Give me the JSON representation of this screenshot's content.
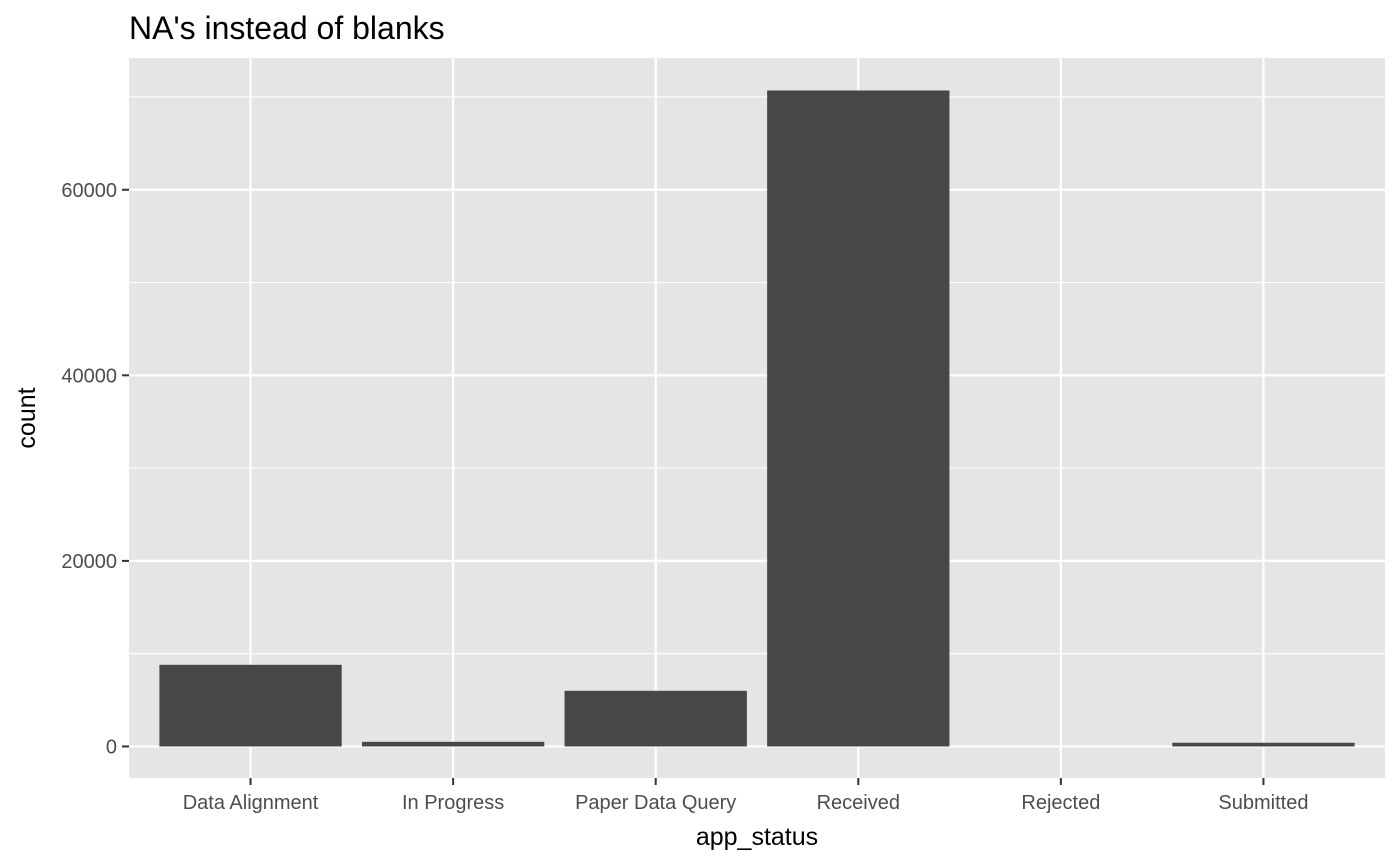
{
  "chart_data": {
    "type": "bar",
    "title": "NA's instead of blanks",
    "xlabel": "app_status",
    "ylabel": "count",
    "categories": [
      "Data Alignment",
      "In Progress",
      "Paper Data Query",
      "Received",
      "Rejected",
      "Submitted"
    ],
    "values": [
      8800,
      500,
      6000,
      70700,
      0,
      400
    ],
    "yticks": [
      0,
      20000,
      40000,
      60000
    ],
    "ylim": [
      -3400,
      74200
    ],
    "grid": true,
    "legend": "none",
    "colors": {
      "panel": "#e5e5e5",
      "bar": "#474747",
      "grid": "#ffffff",
      "tick_label": "#4d4d4d",
      "tick_mark": "#333333"
    }
  }
}
